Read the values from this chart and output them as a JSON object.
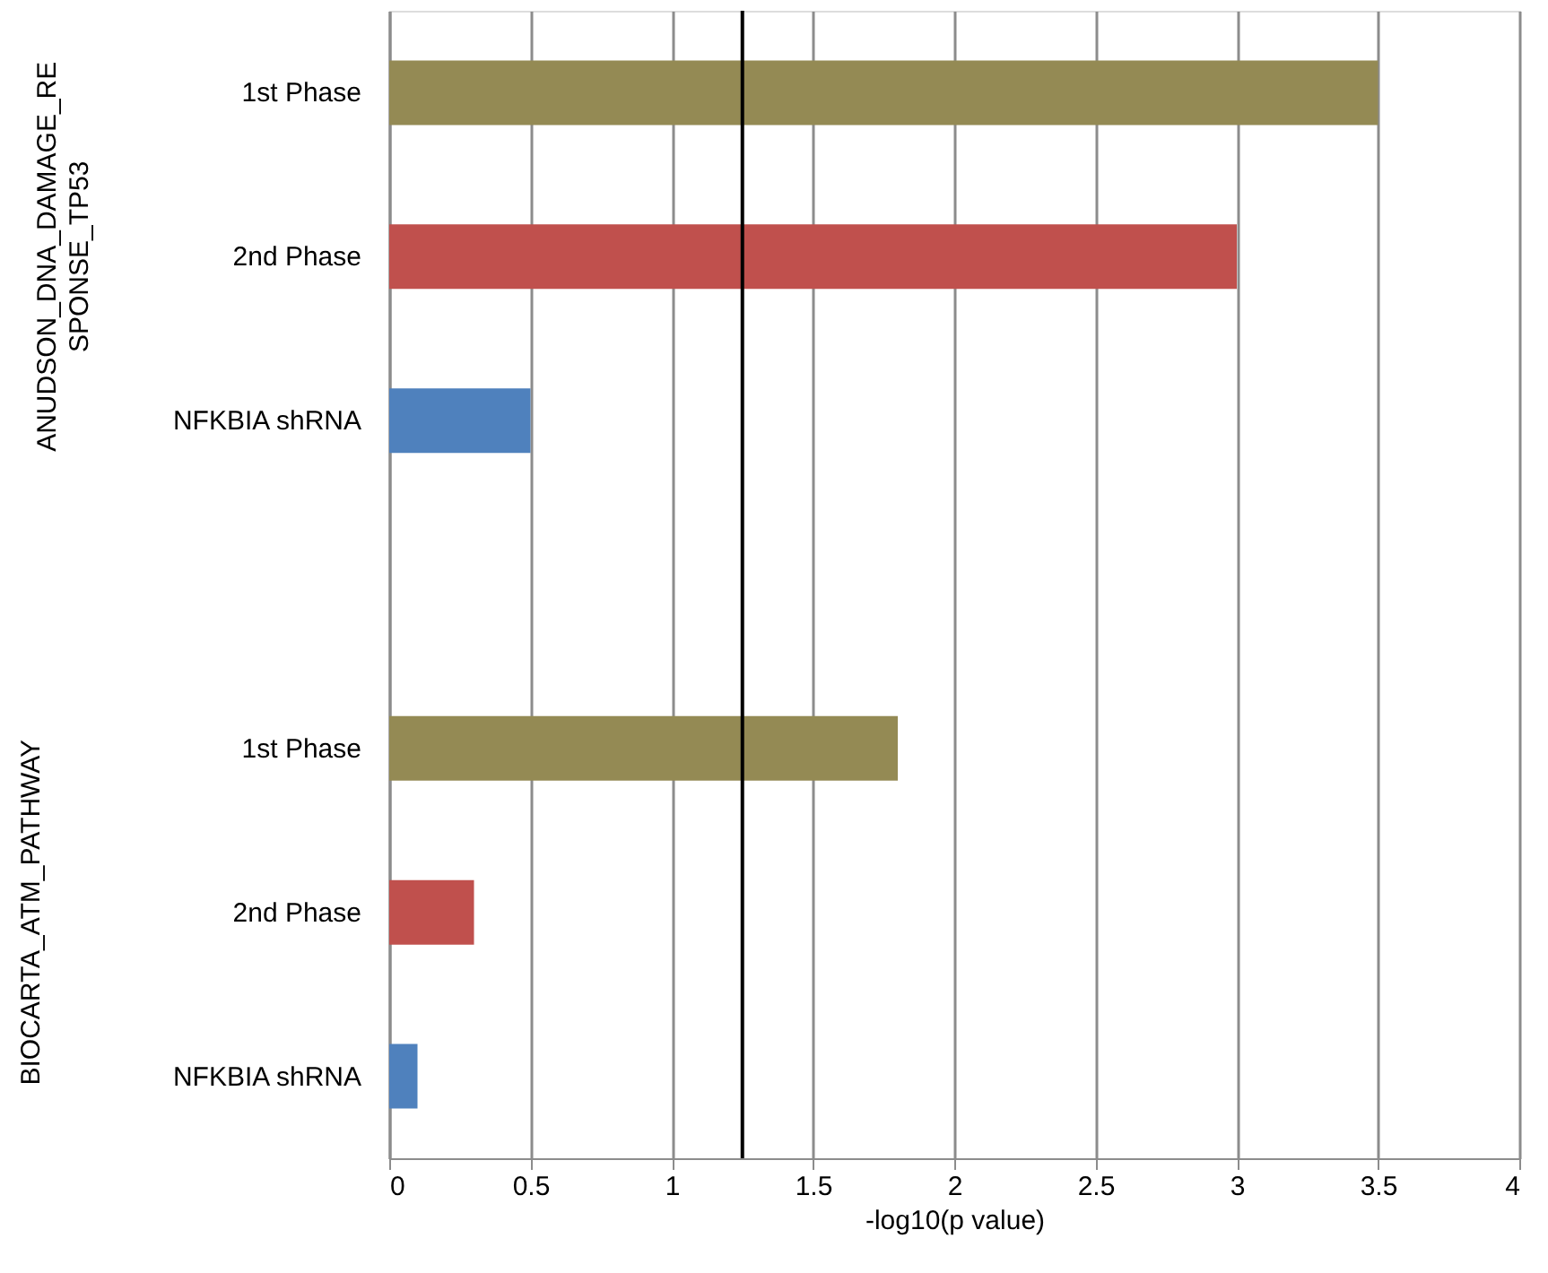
{
  "chart_data": {
    "type": "bar",
    "orientation": "horizontal",
    "categories": [
      "1st Phase",
      "2nd Phase",
      "NFKBIA shRNA",
      null,
      "1st Phase",
      "2nd Phase",
      "NFKBIA shRNA"
    ],
    "values": [
      3.5,
      3.0,
      0.5,
      null,
      1.8,
      0.3,
      0.1
    ],
    "colors": [
      "#948a54",
      "#c0504d",
      "#4f81bd",
      null,
      "#948a54",
      "#c0504d",
      "#4f81bd"
    ],
    "xlim": [
      0,
      4
    ],
    "xticks": [
      0,
      0.5,
      1,
      1.5,
      2,
      2.5,
      3,
      3.5,
      4
    ],
    "xlabel": "-log10(p value)",
    "grid": "x",
    "ref_lines": [
      {
        "axis": "x",
        "value": 1.25,
        "color": "#000000"
      }
    ],
    "annotations": [
      "ANUDSON_DNA_DAMAGE_RESPONSE_TP53",
      "BIOCARTA_ATM_PATHWAY"
    ]
  }
}
